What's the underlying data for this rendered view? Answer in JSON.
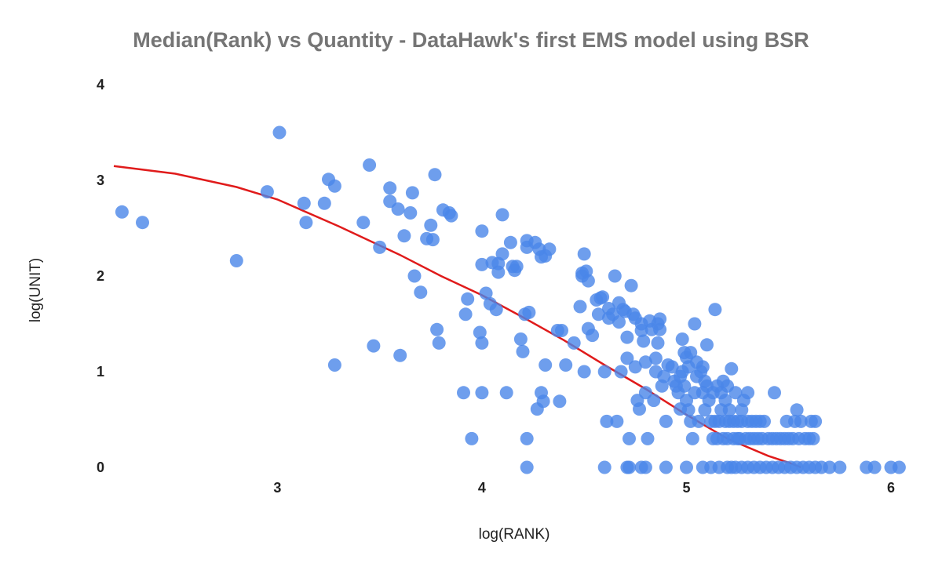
{
  "chart_data": {
    "type": "scatter",
    "title": "Median(Rank) vs Quantity - DataHawk's first EMS model using BSR",
    "xlabel": "log(RANK)",
    "ylabel": "log(UNIT)",
    "xlim": [
      2.2,
      6.05
    ],
    "ylim": [
      0,
      4
    ],
    "xticks": [
      3,
      4,
      5,
      6
    ],
    "yticks": [
      0,
      1,
      2,
      3,
      4
    ],
    "grid": false,
    "legend": "none",
    "colors": {
      "points": "#4a86e8",
      "trend": "#e01b1b"
    },
    "series": [
      {
        "type": "scatter",
        "points": [
          [
            2.24,
            2.67
          ],
          [
            2.34,
            2.56
          ],
          [
            2.8,
            2.16
          ],
          [
            2.95,
            2.88
          ],
          [
            3.01,
            3.5
          ],
          [
            3.13,
            2.76
          ],
          [
            3.14,
            2.56
          ],
          [
            3.23,
            2.76
          ],
          [
            3.25,
            3.01
          ],
          [
            3.28,
            2.94
          ],
          [
            3.28,
            1.07
          ],
          [
            3.42,
            2.56
          ],
          [
            3.45,
            3.16
          ],
          [
            3.47,
            1.27
          ],
          [
            3.5,
            2.3
          ],
          [
            3.55,
            2.92
          ],
          [
            3.55,
            2.78
          ],
          [
            3.59,
            2.7
          ],
          [
            3.6,
            1.17
          ],
          [
            3.62,
            2.42
          ],
          [
            3.65,
            2.66
          ],
          [
            3.66,
            2.87
          ],
          [
            3.67,
            2.0
          ],
          [
            3.7,
            1.83
          ],
          [
            3.73,
            2.39
          ],
          [
            3.76,
            2.38
          ],
          [
            3.75,
            2.53
          ],
          [
            3.77,
            3.06
          ],
          [
            3.78,
            1.44
          ],
          [
            3.79,
            1.3
          ],
          [
            3.81,
            2.69
          ],
          [
            3.84,
            2.66
          ],
          [
            3.85,
            2.63
          ],
          [
            3.91,
            0.78
          ],
          [
            3.92,
            1.6
          ],
          [
            3.93,
            1.76
          ],
          [
            3.95,
            0.3
          ],
          [
            3.99,
            1.41
          ],
          [
            4.0,
            2.12
          ],
          [
            4.0,
            2.47
          ],
          [
            4.0,
            1.3
          ],
          [
            4.0,
            0.78
          ],
          [
            4.02,
            1.82
          ],
          [
            4.04,
            1.71
          ],
          [
            4.05,
            2.14
          ],
          [
            4.07,
            1.65
          ],
          [
            4.08,
            2.13
          ],
          [
            4.08,
            2.04
          ],
          [
            4.1,
            2.23
          ],
          [
            4.1,
            2.64
          ],
          [
            4.12,
            0.78
          ],
          [
            4.14,
            2.35
          ],
          [
            4.15,
            2.1
          ],
          [
            4.16,
            2.06
          ],
          [
            4.17,
            2.1
          ],
          [
            4.19,
            1.34
          ],
          [
            4.2,
            1.21
          ],
          [
            4.21,
            1.6
          ],
          [
            4.22,
            0.3
          ],
          [
            4.22,
            2.37
          ],
          [
            4.22,
            2.3
          ],
          [
            4.23,
            1.62
          ],
          [
            4.26,
            2.35
          ],
          [
            4.27,
            0.61
          ],
          [
            4.28,
            2.28
          ],
          [
            4.29,
            0.78
          ],
          [
            4.29,
            2.2
          ],
          [
            4.3,
            0.69
          ],
          [
            4.31,
            2.21
          ],
          [
            4.31,
            1.07
          ],
          [
            4.33,
            2.28
          ],
          [
            4.37,
            1.43
          ],
          [
            4.38,
            0.69
          ],
          [
            4.39,
            1.43
          ],
          [
            4.41,
            1.07
          ],
          [
            4.45,
            1.3
          ],
          [
            4.48,
            1.68
          ],
          [
            4.49,
            2.0
          ],
          [
            4.49,
            2.03
          ],
          [
            4.5,
            1.0
          ],
          [
            4.5,
            2.23
          ],
          [
            4.51,
            2.05
          ],
          [
            4.52,
            1.95
          ],
          [
            4.52,
            1.45
          ],
          [
            4.54,
            1.38
          ],
          [
            4.56,
            1.75
          ],
          [
            4.57,
            1.6
          ],
          [
            4.58,
            1.77
          ],
          [
            4.59,
            1.78
          ],
          [
            4.6,
            1.0
          ],
          [
            4.61,
            0.48
          ],
          [
            4.62,
            1.66
          ],
          [
            4.62,
            1.56
          ],
          [
            4.64,
            1.6
          ],
          [
            4.65,
            2.0
          ],
          [
            4.66,
            0.48
          ],
          [
            4.67,
            1.52
          ],
          [
            4.67,
            1.72
          ],
          [
            4.68,
            1.0
          ],
          [
            4.69,
            1.65
          ],
          [
            4.7,
            1.63
          ],
          [
            4.71,
            1.14
          ],
          [
            4.71,
            1.36
          ],
          [
            4.72,
            0.3
          ],
          [
            4.73,
            1.9
          ],
          [
            4.74,
            1.6
          ],
          [
            4.75,
            1.56
          ],
          [
            4.75,
            1.05
          ],
          [
            4.76,
            0.7
          ],
          [
            4.77,
            0.61
          ],
          [
            4.78,
            1.5
          ],
          [
            4.78,
            1.43
          ],
          [
            4.79,
            1.32
          ],
          [
            4.8,
            0.78
          ],
          [
            4.8,
            1.1
          ],
          [
            4.81,
            0.3
          ],
          [
            4.82,
            1.53
          ],
          [
            4.83,
            1.44
          ],
          [
            4.84,
            0.7
          ],
          [
            4.85,
            1.14
          ],
          [
            4.85,
            1.0
          ],
          [
            4.86,
            1.3
          ],
          [
            4.86,
            1.5
          ],
          [
            4.87,
            1.55
          ],
          [
            4.87,
            1.44
          ],
          [
            4.88,
            0.85
          ],
          [
            4.89,
            0.95
          ],
          [
            4.9,
            0.48
          ],
          [
            4.91,
            1.07
          ],
          [
            4.93,
            1.05
          ],
          [
            4.94,
            0.9
          ],
          [
            4.95,
            0.85
          ],
          [
            4.96,
            0.78
          ],
          [
            4.97,
            0.61
          ],
          [
            4.97,
            0.95
          ],
          [
            4.98,
            1.34
          ],
          [
            4.98,
            1.0
          ],
          [
            4.99,
            1.2
          ],
          [
            4.99,
            0.85
          ],
          [
            5.0,
            1.15
          ],
          [
            5.0,
            0.7
          ],
          [
            5.01,
            0.6
          ],
          [
            5.01,
            1.05
          ],
          [
            5.02,
            0.48
          ],
          [
            5.02,
            1.2
          ],
          [
            5.03,
            0.3
          ],
          [
            5.04,
            1.5
          ],
          [
            5.04,
            0.78
          ],
          [
            5.05,
            1.1
          ],
          [
            5.05,
            0.95
          ],
          [
            5.06,
            0.48
          ],
          [
            5.07,
            1.0
          ],
          [
            5.08,
            0.78
          ],
          [
            5.08,
            1.05
          ],
          [
            5.09,
            0.6
          ],
          [
            5.09,
            0.9
          ],
          [
            5.1,
            1.28
          ],
          [
            5.1,
            0.85
          ],
          [
            5.11,
            0.7
          ],
          [
            5.12,
            0.48
          ],
          [
            5.13,
            0.3
          ],
          [
            5.13,
            0.78
          ],
          [
            5.14,
            0.48
          ],
          [
            5.14,
            1.65
          ],
          [
            5.15,
            0.85
          ],
          [
            5.15,
            0.3
          ],
          [
            5.16,
            0.48
          ],
          [
            5.17,
            0.78
          ],
          [
            5.17,
            0.6
          ],
          [
            5.18,
            0.9
          ],
          [
            5.18,
            0.3
          ],
          [
            5.19,
            0.48
          ],
          [
            5.19,
            0.7
          ],
          [
            5.2,
            0.3
          ],
          [
            5.2,
            0.85
          ],
          [
            5.21,
            0.48
          ],
          [
            5.21,
            0.6
          ],
          [
            5.22,
            1.03
          ],
          [
            5.23,
            0.3
          ],
          [
            5.23,
            0.48
          ],
          [
            5.24,
            0.78
          ],
          [
            5.25,
            0.3
          ],
          [
            5.25,
            0.48
          ],
          [
            5.26,
            0.3
          ],
          [
            5.27,
            0.6
          ],
          [
            5.27,
            0.48
          ],
          [
            5.28,
            0.7
          ],
          [
            5.29,
            0.3
          ],
          [
            5.3,
            0.78
          ],
          [
            5.3,
            0.48
          ],
          [
            5.31,
            0.3
          ],
          [
            5.32,
            0.48
          ],
          [
            5.33,
            0.3
          ],
          [
            5.34,
            0.48
          ],
          [
            5.35,
            0.3
          ],
          [
            5.36,
            0.48
          ],
          [
            5.37,
            0.3
          ],
          [
            5.38,
            0.48
          ],
          [
            5.4,
            0.3
          ],
          [
            5.42,
            0.3
          ],
          [
            5.43,
            0.78
          ],
          [
            5.44,
            0.3
          ],
          [
            5.46,
            0.3
          ],
          [
            5.48,
            0.3
          ],
          [
            5.49,
            0.48
          ],
          [
            5.5,
            0.3
          ],
          [
            5.52,
            0.3
          ],
          [
            5.53,
            0.48
          ],
          [
            5.54,
            0.6
          ],
          [
            5.55,
            0.3
          ],
          [
            5.56,
            0.48
          ],
          [
            5.58,
            0.3
          ],
          [
            5.6,
            0.3
          ],
          [
            5.61,
            0.48
          ],
          [
            5.62,
            0.3
          ],
          [
            5.63,
            0.48
          ],
          [
            4.22,
            0.0
          ],
          [
            4.6,
            0.0
          ],
          [
            4.71,
            0.0
          ],
          [
            4.72,
            0.0
          ],
          [
            4.78,
            0.0
          ],
          [
            4.8,
            0.0
          ],
          [
            4.9,
            0.0
          ],
          [
            5.0,
            0.0
          ],
          [
            5.08,
            0.0
          ],
          [
            5.12,
            0.0
          ],
          [
            5.16,
            0.0
          ],
          [
            5.2,
            0.0
          ],
          [
            5.22,
            0.0
          ],
          [
            5.24,
            0.0
          ],
          [
            5.27,
            0.0
          ],
          [
            5.3,
            0.0
          ],
          [
            5.33,
            0.0
          ],
          [
            5.36,
            0.0
          ],
          [
            5.39,
            0.0
          ],
          [
            5.42,
            0.0
          ],
          [
            5.45,
            0.0
          ],
          [
            5.48,
            0.0
          ],
          [
            5.51,
            0.0
          ],
          [
            5.54,
            0.0
          ],
          [
            5.57,
            0.0
          ],
          [
            5.6,
            0.0
          ],
          [
            5.63,
            0.0
          ],
          [
            5.66,
            0.0
          ],
          [
            5.7,
            0.0
          ],
          [
            5.75,
            0.0
          ],
          [
            5.88,
            0.0
          ],
          [
            5.92,
            0.0
          ],
          [
            6.0,
            0.0
          ],
          [
            6.04,
            0.0
          ]
        ]
      },
      {
        "type": "line",
        "points": [
          [
            2.2,
            3.15
          ],
          [
            2.5,
            3.07
          ],
          [
            2.8,
            2.93
          ],
          [
            3.0,
            2.8
          ],
          [
            3.3,
            2.52
          ],
          [
            3.6,
            2.22
          ],
          [
            3.8,
            2.0
          ],
          [
            4.0,
            1.8
          ],
          [
            4.2,
            1.57
          ],
          [
            4.4,
            1.33
          ],
          [
            4.6,
            1.07
          ],
          [
            4.8,
            0.82
          ],
          [
            5.0,
            0.55
          ],
          [
            5.2,
            0.3
          ],
          [
            5.4,
            0.12
          ],
          [
            5.5,
            0.05
          ],
          [
            5.56,
            0.0
          ]
        ]
      }
    ]
  }
}
